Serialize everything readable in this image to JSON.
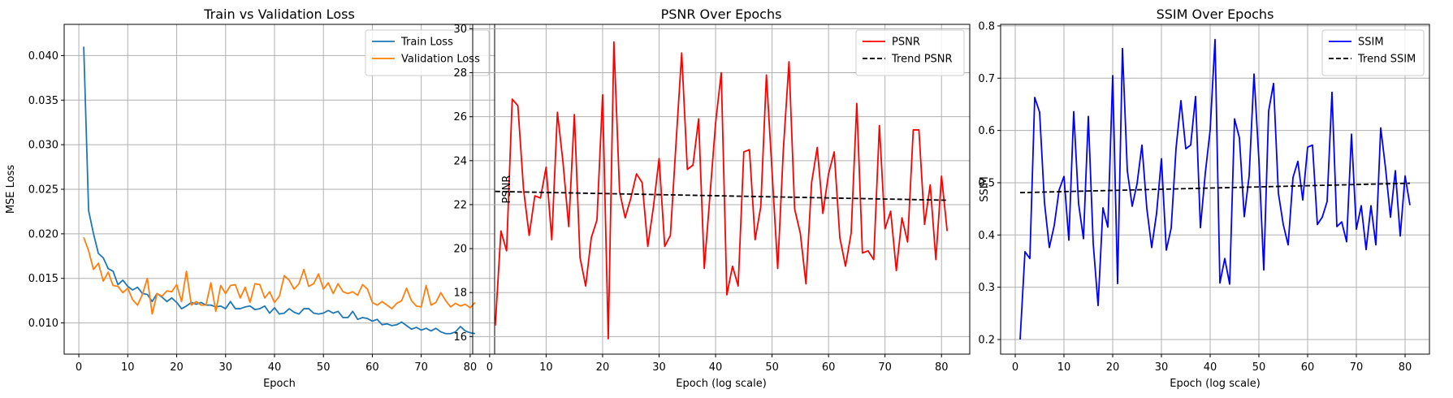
{
  "chart_data": [
    {
      "type": "line",
      "title": "Train vs Validation Loss",
      "xlabel": "Epoch",
      "ylabel": "MSE Loss",
      "xlim": [
        -3,
        85
      ],
      "ylim": [
        0.0065,
        0.0435
      ],
      "xticks": [
        0,
        10,
        20,
        30,
        40,
        50,
        60,
        70,
        80
      ],
      "yticks": [
        0.01,
        0.015,
        0.02,
        0.025,
        0.03,
        0.035,
        0.04
      ],
      "ytick_labels": [
        "0.010",
        "0.015",
        "0.020",
        "0.025",
        "0.030",
        "0.035",
        "0.040"
      ],
      "grid": true,
      "legend": "upper right",
      "series": [
        {
          "name": "Train Loss",
          "color": "#1f77b4",
          "dash": "",
          "x": [
            1,
            2,
            3,
            4,
            5,
            6,
            7,
            8,
            9,
            10,
            11,
            12,
            13,
            14,
            15,
            16,
            17,
            18,
            19,
            20,
            21,
            22,
            23,
            24,
            25,
            26,
            27,
            28,
            29,
            30,
            31,
            32,
            33,
            34,
            35,
            36,
            37,
            38,
            39,
            40,
            41,
            42,
            43,
            44,
            45,
            46,
            47,
            48,
            49,
            50,
            51,
            52,
            53,
            54,
            55,
            56,
            57,
            58,
            59,
            60,
            61,
            62,
            63,
            64,
            65,
            66,
            67,
            68,
            69,
            70,
            71,
            72,
            73,
            74,
            75,
            76,
            77,
            78,
            79,
            80,
            81
          ],
          "values": [
            0.041,
            0.0226,
            0.02,
            0.0178,
            0.0173,
            0.0161,
            0.0158,
            0.0143,
            0.0148,
            0.0141,
            0.0137,
            0.014,
            0.0133,
            0.0132,
            0.0124,
            0.0133,
            0.0129,
            0.0124,
            0.0128,
            0.0123,
            0.0116,
            0.0119,
            0.0123,
            0.0121,
            0.0123,
            0.012,
            0.012,
            0.0118,
            0.0119,
            0.0116,
            0.0124,
            0.0116,
            0.0116,
            0.0118,
            0.0119,
            0.0115,
            0.0116,
            0.0119,
            0.0111,
            0.0117,
            0.011,
            0.0111,
            0.0116,
            0.0112,
            0.011,
            0.0116,
            0.0116,
            0.0111,
            0.011,
            0.0111,
            0.0114,
            0.0111,
            0.0113,
            0.0106,
            0.0106,
            0.0113,
            0.0104,
            0.0106,
            0.0105,
            0.0102,
            0.0104,
            0.0098,
            0.0099,
            0.0097,
            0.0098,
            0.0101,
            0.0097,
            0.0093,
            0.0095,
            0.0092,
            0.0094,
            0.0091,
            0.0094,
            0.009,
            0.0088,
            0.0088,
            0.009,
            0.0096,
            0.0091,
            0.0089,
            0.0088
          ]
        },
        {
          "name": "Validation Loss",
          "color": "#ff7f0e",
          "dash": "",
          "x": [
            1,
            2,
            3,
            4,
            5,
            6,
            7,
            8,
            9,
            10,
            11,
            12,
            13,
            14,
            15,
            16,
            17,
            18,
            19,
            20,
            21,
            22,
            23,
            24,
            25,
            26,
            27,
            28,
            29,
            30,
            31,
            32,
            33,
            34,
            35,
            36,
            37,
            38,
            39,
            40,
            41,
            42,
            43,
            44,
            45,
            46,
            47,
            48,
            49,
            50,
            51,
            52,
            53,
            54,
            55,
            56,
            57,
            58,
            59,
            60,
            61,
            62,
            63,
            64,
            65,
            66,
            67,
            68,
            69,
            70,
            71,
            72,
            73,
            74,
            75,
            76,
            77,
            78,
            79,
            80,
            81
          ],
          "values": [
            0.0196,
            0.0181,
            0.016,
            0.0167,
            0.0147,
            0.0157,
            0.0142,
            0.0141,
            0.0134,
            0.0139,
            0.0126,
            0.012,
            0.0132,
            0.015,
            0.011,
            0.0133,
            0.013,
            0.0136,
            0.0135,
            0.0143,
            0.0124,
            0.0158,
            0.012,
            0.0124,
            0.012,
            0.012,
            0.0145,
            0.0113,
            0.0142,
            0.0133,
            0.0142,
            0.0143,
            0.0128,
            0.014,
            0.0123,
            0.0144,
            0.0143,
            0.0128,
            0.0135,
            0.0123,
            0.013,
            0.0153,
            0.0148,
            0.0138,
            0.0144,
            0.016,
            0.0141,
            0.0144,
            0.0155,
            0.0138,
            0.0145,
            0.0133,
            0.0144,
            0.0135,
            0.0133,
            0.0135,
            0.0131,
            0.0143,
            0.0138,
            0.0123,
            0.012,
            0.0124,
            0.012,
            0.0116,
            0.0122,
            0.0125,
            0.0139,
            0.0125,
            0.0119,
            0.0118,
            0.0142,
            0.012,
            0.0123,
            0.0134,
            0.0125,
            0.0118,
            0.0122,
            0.0119,
            0.0121,
            0.0117,
            0.0123
          ]
        }
      ]
    },
    {
      "type": "line",
      "title": "PSNR Over Epochs",
      "xlabel": "Epoch (log scale)",
      "ylabel": "PSNR",
      "xlim": [
        -3,
        85
      ],
      "ylim": [
        15.2,
        30.2
      ],
      "xticks": [
        0,
        10,
        20,
        30,
        40,
        50,
        60,
        70,
        80
      ],
      "yticks": [
        16,
        18,
        20,
        22,
        24,
        26,
        28,
        30
      ],
      "ytick_labels": [
        "16",
        "18",
        "20",
        "22",
        "24",
        "26",
        "28",
        "30"
      ],
      "grid": true,
      "legend": "upper right",
      "series": [
        {
          "name": "PSNR",
          "color": "#ff0000",
          "dash": "",
          "x": [
            1,
            2,
            3,
            4,
            5,
            6,
            7,
            8,
            9,
            10,
            11,
            12,
            13,
            14,
            15,
            16,
            17,
            18,
            19,
            20,
            21,
            22,
            23,
            24,
            25,
            26,
            27,
            28,
            29,
            30,
            31,
            32,
            33,
            34,
            35,
            36,
            37,
            38,
            39,
            40,
            41,
            42,
            43,
            44,
            45,
            46,
            47,
            48,
            49,
            50,
            51,
            52,
            53,
            54,
            55,
            56,
            57,
            58,
            59,
            60,
            61,
            62,
            63,
            64,
            65,
            66,
            67,
            68,
            69,
            70,
            71,
            72,
            73,
            74,
            75,
            76,
            77,
            78,
            79,
            80,
            81
          ],
          "values": [
            16.5,
            20.8,
            19.9,
            26.8,
            26.5,
            22.7,
            20.6,
            22.4,
            22.3,
            23.7,
            20.4,
            26.2,
            23.9,
            21.0,
            26.1,
            19.6,
            18.3,
            20.5,
            21.3,
            27.0,
            15.9,
            29.4,
            22.6,
            21.4,
            22.3,
            23.4,
            23.0,
            20.1,
            21.9,
            24.1,
            20.1,
            20.6,
            24.8,
            28.9,
            23.6,
            23.8,
            25.9,
            19.1,
            22.4,
            25.7,
            28.0,
            17.9,
            19.2,
            18.3,
            24.4,
            24.5,
            20.4,
            21.9,
            27.9,
            23.5,
            19.1,
            24.5,
            28.5,
            21.8,
            20.7,
            18.4,
            23.0,
            24.6,
            21.6,
            23.4,
            24.4,
            20.5,
            19.2,
            20.7,
            26.6,
            19.8,
            19.9,
            19.5,
            25.6,
            20.9,
            21.7,
            19.0,
            21.4,
            20.3,
            25.4,
            25.4,
            21.1,
            22.9,
            19.5,
            23.3,
            20.8
          ]
        },
        {
          "name": "Trend PSNR",
          "color": "#000000",
          "dash": "6,3",
          "x": [
            1,
            81
          ],
          "values": [
            22.6,
            22.2
          ]
        }
      ]
    },
    {
      "type": "line",
      "title": "SSIM Over Epochs",
      "xlabel": "Epoch (log scale)",
      "ylabel": "SSIM",
      "xlim": [
        -3,
        85
      ],
      "ylim": [
        0.172,
        0.803
      ],
      "xticks": [
        0,
        10,
        20,
        30,
        40,
        50,
        60,
        70,
        80
      ],
      "yticks": [
        0.2,
        0.3,
        0.4,
        0.5,
        0.6,
        0.7,
        0.8
      ],
      "ytick_labels": [
        "0.2",
        "0.3",
        "0.4",
        "0.5",
        "0.6",
        "0.7",
        "0.8"
      ],
      "grid": true,
      "legend": "upper right",
      "series": [
        {
          "name": "SSIM",
          "color": "#0000ff",
          "dash": "",
          "x": [
            1,
            2,
            3,
            4,
            5,
            6,
            7,
            8,
            9,
            10,
            11,
            12,
            13,
            14,
            15,
            16,
            17,
            18,
            19,
            20,
            21,
            22,
            23,
            24,
            25,
            26,
            27,
            28,
            29,
            30,
            31,
            32,
            33,
            34,
            35,
            36,
            37,
            38,
            39,
            40,
            41,
            42,
            43,
            44,
            45,
            46,
            47,
            48,
            49,
            50,
            51,
            52,
            53,
            54,
            55,
            56,
            57,
            58,
            59,
            60,
            61,
            62,
            63,
            64,
            65,
            66,
            67,
            68,
            69,
            70,
            71,
            72,
            73,
            74,
            75,
            76,
            77,
            78,
            79,
            80,
            81
          ],
          "values": [
            0.2,
            0.368,
            0.355,
            0.663,
            0.635,
            0.462,
            0.376,
            0.418,
            0.486,
            0.512,
            0.39,
            0.636,
            0.46,
            0.393,
            0.627,
            0.384,
            0.265,
            0.452,
            0.415,
            0.705,
            0.307,
            0.757,
            0.523,
            0.455,
            0.498,
            0.572,
            0.451,
            0.376,
            0.441,
            0.546,
            0.371,
            0.413,
            0.566,
            0.657,
            0.565,
            0.572,
            0.665,
            0.414,
            0.518,
            0.601,
            0.774,
            0.308,
            0.355,
            0.306,
            0.622,
            0.586,
            0.435,
            0.513,
            0.708,
            0.544,
            0.333,
            0.637,
            0.69,
            0.48,
            0.42,
            0.381,
            0.51,
            0.541,
            0.467,
            0.568,
            0.572,
            0.42,
            0.434,
            0.464,
            0.673,
            0.416,
            0.425,
            0.387,
            0.593,
            0.411,
            0.456,
            0.372,
            0.456,
            0.381,
            0.605,
            0.527,
            0.434,
            0.523,
            0.398,
            0.513,
            0.457
          ]
        },
        {
          "name": "Trend SSIM",
          "color": "#000000",
          "dash": "6,3",
          "x": [
            1,
            81
          ],
          "values": [
            0.481,
            0.499
          ]
        }
      ]
    }
  ]
}
